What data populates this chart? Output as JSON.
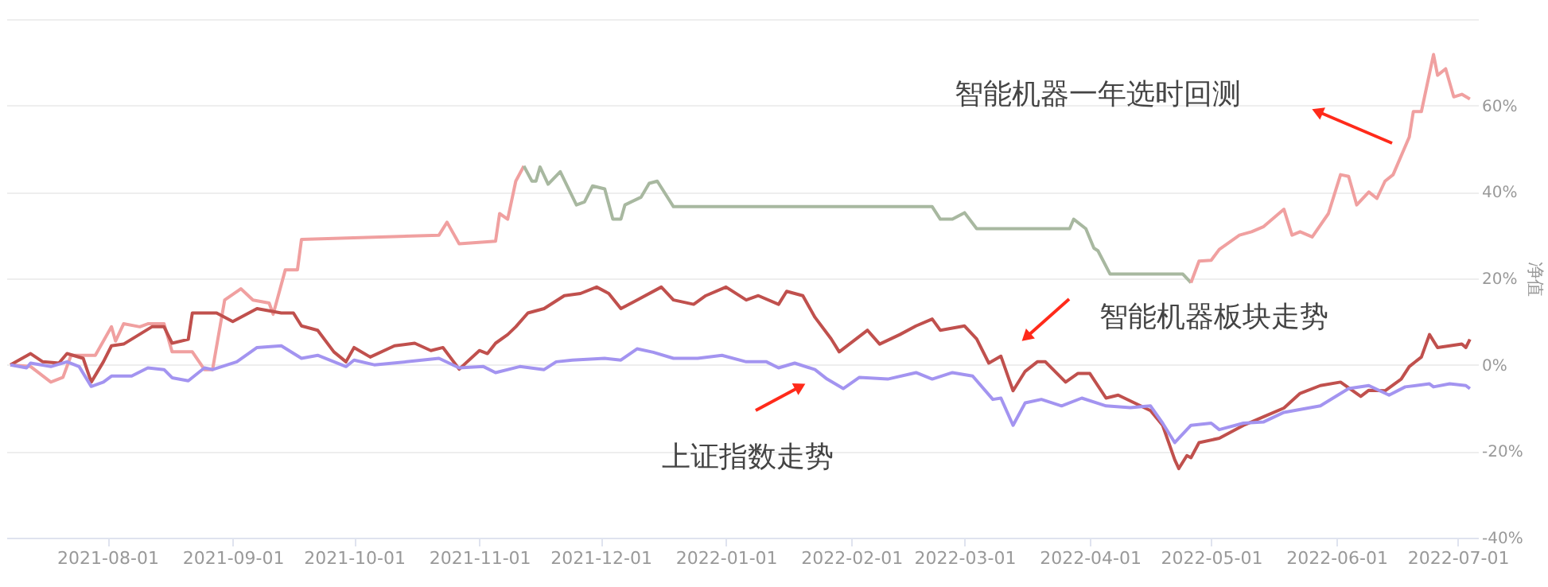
{
  "chart_data": {
    "type": "line",
    "ylabel": "净值",
    "grid": "y",
    "line_style": "solid",
    "xlim": [
      "2021-07-07",
      "2022-07-06"
    ],
    "xticks": [
      "2021-08-01",
      "2021-09-01",
      "2021-10-01",
      "2021-11-01",
      "2021-12-01",
      "2022-01-01",
      "2022-02-01",
      "2022-03-01",
      "2022-04-01",
      "2022-05-01",
      "2022-06-01",
      "2022-07-01"
    ],
    "ylim": [
      -40,
      80
    ],
    "yticks": [
      {
        "value": -40,
        "label": "-40%"
      },
      {
        "value": -20,
        "label": "-20%"
      },
      {
        "value": 0,
        "label": "0%"
      },
      {
        "value": 20,
        "label": "20%"
      },
      {
        "value": 40,
        "label": "40%"
      },
      {
        "value": 60,
        "label": "60%"
      },
      {
        "value": 80,
        "label": null
      }
    ],
    "series": [
      {
        "color": "#f0a0a0",
        "x": [
          "2021-07-08",
          "2021-07-13",
          "2021-07-18",
          "2021-07-21",
          "2021-07-23",
          "2021-07-29",
          "2021-08-02",
          "2021-08-03",
          "2021-08-05",
          "2021-08-09",
          "2021-08-11",
          "2021-08-15",
          "2021-08-17",
          "2021-08-22",
          "2021-08-25",
          "2021-08-27",
          "2021-08-30",
          "2021-09-03",
          "2021-09-06",
          "2021-09-10",
          "2021-09-11",
          "2021-09-14",
          "2021-09-17",
          "2021-09-18",
          "2021-10-22",
          "2021-10-24",
          "2021-10-27",
          "2021-11-05",
          "2021-11-06",
          "2021-11-08",
          "2021-11-10",
          "2021-11-12"
        ],
        "values": [
          0,
          -0.4,
          -4,
          -2.9,
          2.2,
          2.2,
          8.8,
          5.5,
          9.5,
          8.8,
          9.5,
          9.5,
          3,
          3,
          -1.1,
          -1.1,
          15,
          17.6,
          15,
          14.3,
          11.7,
          22,
          22,
          29,
          30,
          33,
          28,
          28.6,
          35,
          33.7,
          42.5,
          46
        ]
      },
      {
        "color": "#a8b8a0",
        "x": [
          "2021-11-12",
          "2021-11-14",
          "2021-11-15",
          "2021-11-16",
          "2021-11-18",
          "2021-11-21",
          "2021-11-25",
          "2021-11-27",
          "2021-11-29",
          "2021-12-02",
          "2021-12-04",
          "2021-12-06",
          "2021-12-07",
          "2021-12-11",
          "2021-12-13",
          "2021-12-15",
          "2021-12-19",
          "2022-02-21",
          "2022-02-23",
          "2022-02-26",
          "2022-03-01",
          "2022-03-04",
          "2022-03-27",
          "2022-03-28",
          "2022-03-31",
          "2022-04-02",
          "2022-04-03",
          "2022-04-06",
          "2022-04-24",
          "2022-04-26"
        ],
        "values": [
          46,
          42.5,
          42.5,
          45.8,
          41.8,
          44.7,
          37,
          37.7,
          41.4,
          40.7,
          33.7,
          33.7,
          37,
          38.8,
          42,
          42.5,
          36.6,
          36.6,
          33.7,
          33.7,
          35.2,
          31.5,
          31.5,
          33.7,
          31.5,
          27,
          26.4,
          21,
          21,
          19
        ]
      },
      {
        "color": "#f0a0a0",
        "x": [
          "2022-04-26",
          "2022-04-28",
          "2022-05-01",
          "2022-05-03",
          "2022-05-08",
          "2022-05-11",
          "2022-05-14",
          "2022-05-19",
          "2022-05-21",
          "2022-05-23",
          "2022-05-26",
          "2022-05-30",
          "2022-06-02",
          "2022-06-04",
          "2022-06-06",
          "2022-06-09",
          "2022-06-11",
          "2022-06-13",
          "2022-06-15",
          "2022-06-19",
          "2022-06-20",
          "2022-06-22",
          "2022-06-25",
          "2022-06-26",
          "2022-06-28",
          "2022-06-30",
          "2022-07-02",
          "2022-07-04"
        ],
        "values": [
          19,
          24,
          24.2,
          26.7,
          30,
          30.8,
          32,
          36,
          30,
          30.8,
          29.6,
          35,
          44,
          43.6,
          37,
          40,
          38.5,
          42.5,
          44,
          52.7,
          58.6,
          58.6,
          71.8,
          67,
          68.5,
          62,
          62.6,
          61.5
        ]
      },
      {
        "color": "#c0504d",
        "x": [
          "2021-07-08",
          "2021-07-13",
          "2021-07-16",
          "2021-07-20",
          "2021-07-22",
          "2021-07-26",
          "2021-07-28",
          "2021-07-31",
          "2021-08-02",
          "2021-08-05",
          "2021-08-12",
          "2021-08-15",
          "2021-08-17",
          "2021-08-21",
          "2021-08-22",
          "2021-08-28",
          "2021-09-01",
          "2021-09-07",
          "2021-09-13",
          "2021-09-16",
          "2021-09-18",
          "2021-09-22",
          "2021-09-26",
          "2021-09-29",
          "2021-10-01",
          "2021-10-05",
          "2021-10-11",
          "2021-10-16",
          "2021-10-20",
          "2021-10-23",
          "2021-10-27",
          "2021-11-01",
          "2021-11-03",
          "2021-11-05",
          "2021-11-08",
          "2021-11-10",
          "2021-11-13",
          "2021-11-17",
          "2021-11-22",
          "2021-11-26",
          "2021-11-30",
          "2021-12-03",
          "2021-12-06",
          "2021-12-10",
          "2021-12-16",
          "2021-12-19",
          "2021-12-24",
          "2021-12-27",
          "2022-01-01",
          "2022-01-06",
          "2022-01-09",
          "2022-01-14",
          "2022-01-16",
          "2022-01-20",
          "2022-01-23",
          "2022-01-27",
          "2022-01-29",
          "2022-02-05",
          "2022-02-08",
          "2022-02-13",
          "2022-02-17",
          "2022-02-21",
          "2022-02-23",
          "2022-03-01",
          "2022-03-04",
          "2022-03-07",
          "2022-03-10",
          "2022-03-13",
          "2022-03-16",
          "2022-03-19",
          "2022-03-21",
          "2022-03-26",
          "2022-03-29",
          "2022-04-01",
          "2022-04-05",
          "2022-04-08",
          "2022-04-12",
          "2022-04-16",
          "2022-04-19",
          "2022-04-22",
          "2022-04-23",
          "2022-04-25",
          "2022-04-26",
          "2022-04-28",
          "2022-05-03",
          "2022-05-09",
          "2022-05-14",
          "2022-05-19",
          "2022-05-23",
          "2022-05-28",
          "2022-06-02",
          "2022-06-07",
          "2022-06-09",
          "2022-06-13",
          "2022-06-17",
          "2022-06-19",
          "2022-06-22",
          "2022-06-24",
          "2022-06-26",
          "2022-07-02",
          "2022-07-03",
          "2022-07-04"
        ],
        "values": [
          0,
          2.6,
          0.7,
          0.4,
          2.6,
          1.5,
          -4,
          0.7,
          4.4,
          4.8,
          8.8,
          8.8,
          5,
          5.9,
          12,
          12,
          10,
          13,
          12,
          12,
          9,
          8,
          3,
          0.7,
          4,
          1.8,
          4.4,
          5,
          3.3,
          4,
          -1,
          3.3,
          2.6,
          5,
          7,
          8.8,
          12,
          13,
          16,
          16.5,
          18,
          16.5,
          13,
          15,
          18,
          15,
          14,
          16,
          18,
          15,
          16,
          14,
          17,
          16,
          11,
          6,
          3,
          8,
          4.8,
          7,
          9,
          10.6,
          8,
          9,
          6,
          0.4,
          2,
          -6,
          -1.5,
          0.7,
          0.7,
          -4,
          -2,
          -2,
          -7.7,
          -7,
          -8.8,
          -10.6,
          -14,
          -22,
          -24,
          -21,
          -21.5,
          -18,
          -17,
          -14,
          -12,
          -10,
          -6.6,
          -4.8,
          -4,
          -7.3,
          -5.9,
          -6,
          -3.3,
          -0.4,
          1.8,
          7,
          4,
          4.8,
          4,
          5.9
        ]
      },
      {
        "color": "#a394f0",
        "x": [
          "2021-07-08",
          "2021-07-12",
          "2021-07-13",
          "2021-07-18",
          "2021-07-22",
          "2021-07-25",
          "2021-07-28",
          "2021-07-31",
          "2021-08-02",
          "2021-08-07",
          "2021-08-11",
          "2021-08-15",
          "2021-08-17",
          "2021-08-21",
          "2021-08-25",
          "2021-08-27",
          "2021-09-02",
          "2021-09-07",
          "2021-09-13",
          "2021-09-18",
          "2021-09-22",
          "2021-09-29",
          "2021-10-01",
          "2021-10-06",
          "2021-10-14",
          "2021-10-22",
          "2021-10-27",
          "2021-11-02",
          "2021-11-05",
          "2021-11-11",
          "2021-11-17",
          "2021-11-20",
          "2021-11-24",
          "2021-12-02",
          "2021-12-06",
          "2021-12-10",
          "2021-12-14",
          "2021-12-19",
          "2021-12-25",
          "2021-12-31",
          "2022-01-06",
          "2022-01-11",
          "2022-01-14",
          "2022-01-18",
          "2022-01-23",
          "2022-01-26",
          "2022-01-30",
          "2022-02-03",
          "2022-02-10",
          "2022-02-17",
          "2022-02-21",
          "2022-02-26",
          "2022-03-03",
          "2022-03-08",
          "2022-03-10",
          "2022-03-13",
          "2022-03-16",
          "2022-03-20",
          "2022-03-25",
          "2022-03-30",
          "2022-04-05",
          "2022-04-11",
          "2022-04-16",
          "2022-04-19",
          "2022-04-22",
          "2022-04-26",
          "2022-05-01",
          "2022-05-03",
          "2022-05-09",
          "2022-05-14",
          "2022-05-19",
          "2022-05-28",
          "2022-06-04",
          "2022-06-09",
          "2022-06-14",
          "2022-06-18",
          "2022-06-24",
          "2022-06-25",
          "2022-06-29",
          "2022-07-03",
          "2022-07-04"
        ],
        "values": [
          0,
          -0.7,
          0.4,
          -0.4,
          0.7,
          -0.4,
          -5,
          -4,
          -2.6,
          -2.6,
          -0.7,
          -1.1,
          -3,
          -3.7,
          -0.7,
          -1.1,
          0.7,
          4,
          4.4,
          1.5,
          2.2,
          -0.4,
          1.1,
          0,
          0.7,
          1.5,
          -0.7,
          -0.4,
          -1.8,
          -0.4,
          -1.1,
          0.7,
          1.1,
          1.5,
          1.1,
          3.7,
          2.9,
          1.5,
          1.5,
          2.2,
          0.7,
          0.7,
          -0.7,
          0.4,
          -1.1,
          -3.3,
          -5.5,
          -2.9,
          -3.3,
          -1.8,
          -3.3,
          -1.8,
          -2.6,
          -8,
          -7.7,
          -14,
          -8.8,
          -8,
          -9.5,
          -7.7,
          -9.5,
          -9.9,
          -9.5,
          -13.5,
          -18,
          -14,
          -13.5,
          -15,
          -13.5,
          -13.2,
          -11,
          -9.5,
          -5.5,
          -4.8,
          -7,
          -5.1,
          -4.4,
          -5.1,
          -4.4,
          -4.8,
          -5.5
        ]
      }
    ],
    "annotations": [
      "智能机器一年选时回测",
      "智能机器板块走势",
      "上证指数走势"
    ]
  }
}
